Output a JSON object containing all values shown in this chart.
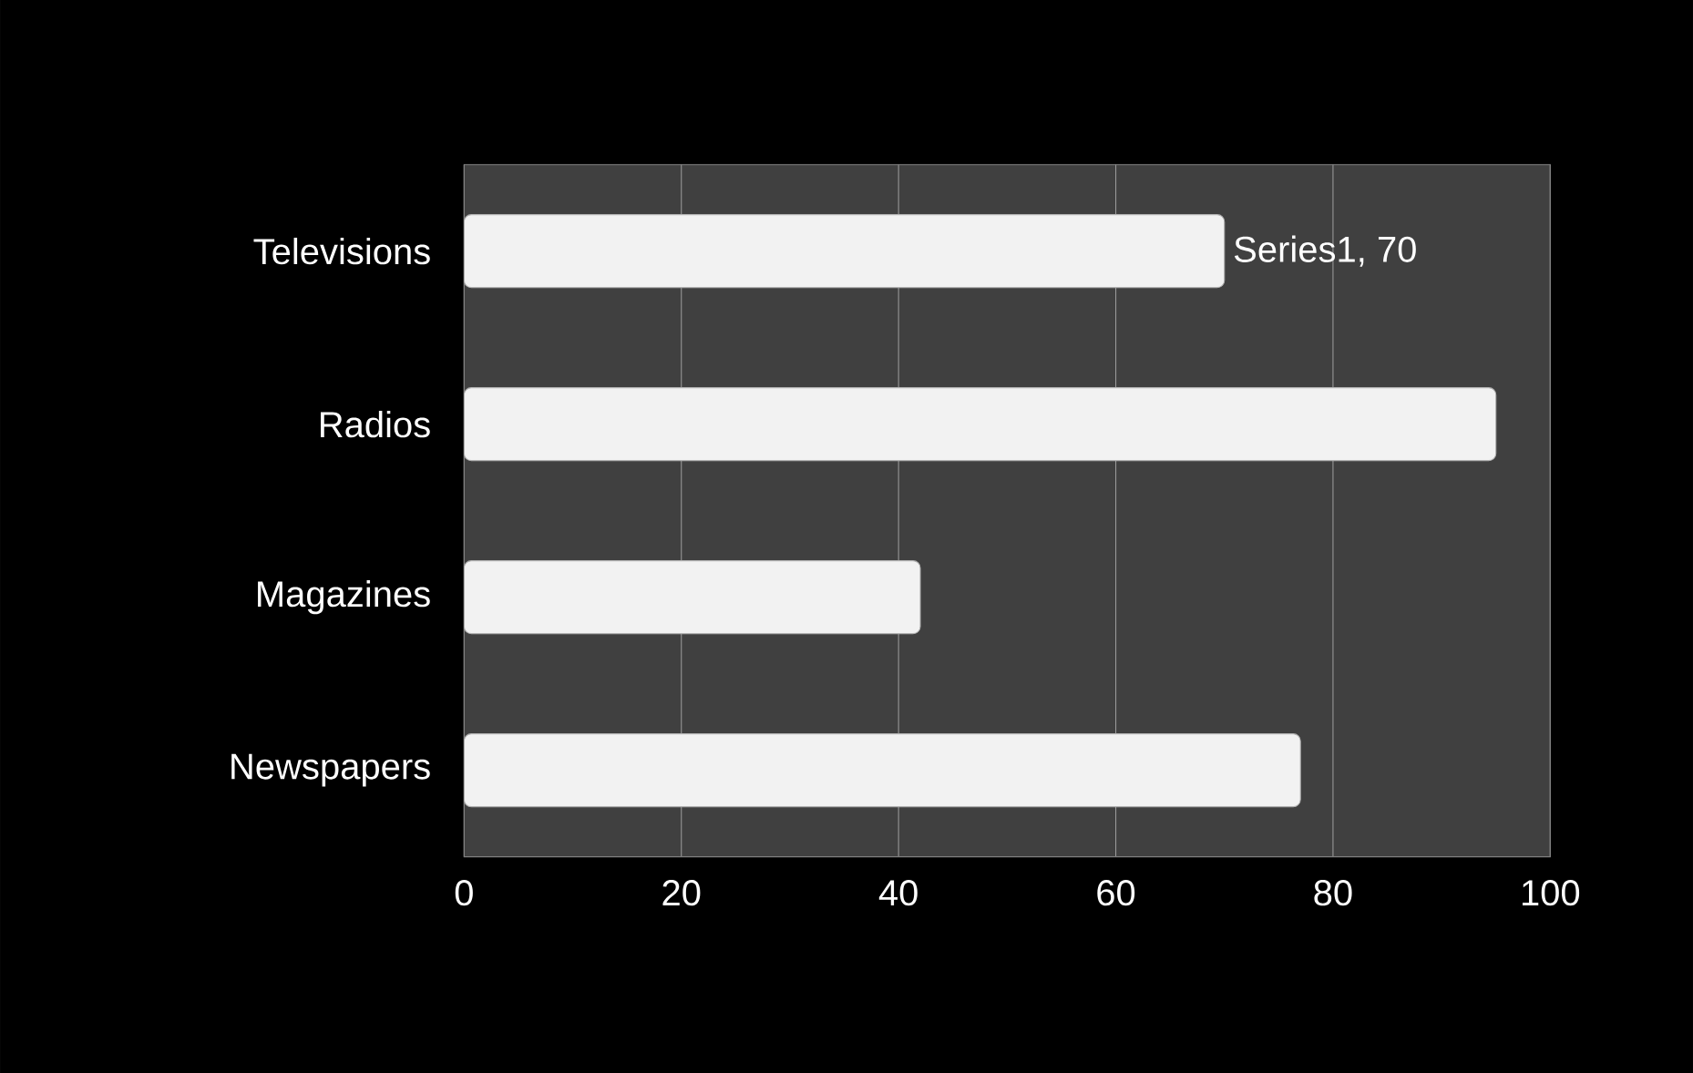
{
  "chart_data": {
    "type": "bar",
    "orientation": "horizontal",
    "categories": [
      "Televisions",
      "Radios",
      "Magazines",
      "Newspapers"
    ],
    "values": [
      70,
      95,
      42,
      77
    ],
    "value_labels": [
      "Series1, 70",
      null,
      null,
      null
    ],
    "color": "#f2f2f2",
    "xlim": [
      0,
      100
    ],
    "xticks": [
      0,
      20,
      40,
      60,
      80,
      100
    ],
    "grid": "x"
  }
}
